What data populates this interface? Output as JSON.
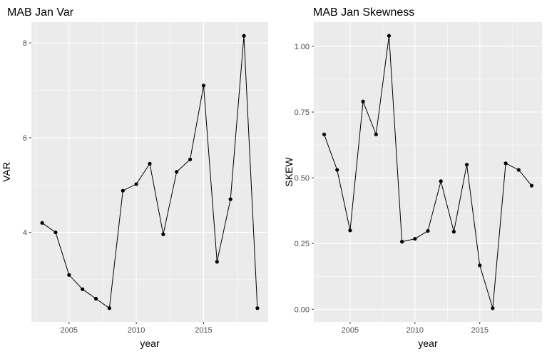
{
  "chart_data": [
    {
      "type": "line",
      "title": "MAB Jan Var",
      "xlabel": "year",
      "ylabel": "VAR",
      "x": [
        2003,
        2004,
        2005,
        2006,
        2007,
        2008,
        2009,
        2010,
        2011,
        2012,
        2013,
        2014,
        2015,
        2016,
        2017,
        2018,
        2019
      ],
      "values": [
        4.2,
        4.0,
        3.1,
        2.8,
        2.6,
        2.4,
        4.88,
        5.02,
        5.45,
        3.96,
        5.28,
        5.54,
        7.1,
        3.38,
        4.7,
        8.15,
        2.4
      ],
      "xticks": [
        2005,
        2010,
        2015
      ],
      "yticks": [
        4,
        6,
        8
      ],
      "xticklabels": [
        "2005",
        "2010",
        "2015"
      ],
      "yticklabels": [
        "4",
        "6",
        "8"
      ],
      "xlim": [
        2002.2,
        2019.8
      ],
      "ylim": [
        2.11,
        8.44
      ],
      "grid": true,
      "colors": {
        "panel": "#ebebeb",
        "grid": "#ffffff",
        "line": "#000000"
      }
    },
    {
      "type": "line",
      "title": "MAB Jan Skewness",
      "xlabel": "year",
      "ylabel": "SKEW",
      "x": [
        2003,
        2004,
        2005,
        2006,
        2007,
        2008,
        2009,
        2010,
        2011,
        2012,
        2013,
        2014,
        2015,
        2016,
        2017,
        2018,
        2019
      ],
      "values": [
        0.665,
        0.53,
        0.3,
        0.79,
        0.665,
        1.04,
        0.257,
        0.268,
        0.298,
        0.487,
        0.295,
        0.55,
        0.167,
        0.004,
        0.555,
        0.53,
        0.47
      ],
      "xticks": [
        2005,
        2010,
        2015
      ],
      "yticks": [
        0,
        0.25,
        0.5,
        0.75,
        1.0
      ],
      "xticklabels": [
        "2005",
        "2010",
        "2015"
      ],
      "yticklabels": [
        "0.00",
        "0.25",
        "0.50",
        "0.75",
        "1.00"
      ],
      "xlim": [
        2002.2,
        2019.8
      ],
      "ylim": [
        -0.048,
        1.092
      ],
      "grid": true,
      "colors": {
        "panel": "#ebebeb",
        "grid": "#ffffff",
        "line": "#000000"
      }
    }
  ]
}
